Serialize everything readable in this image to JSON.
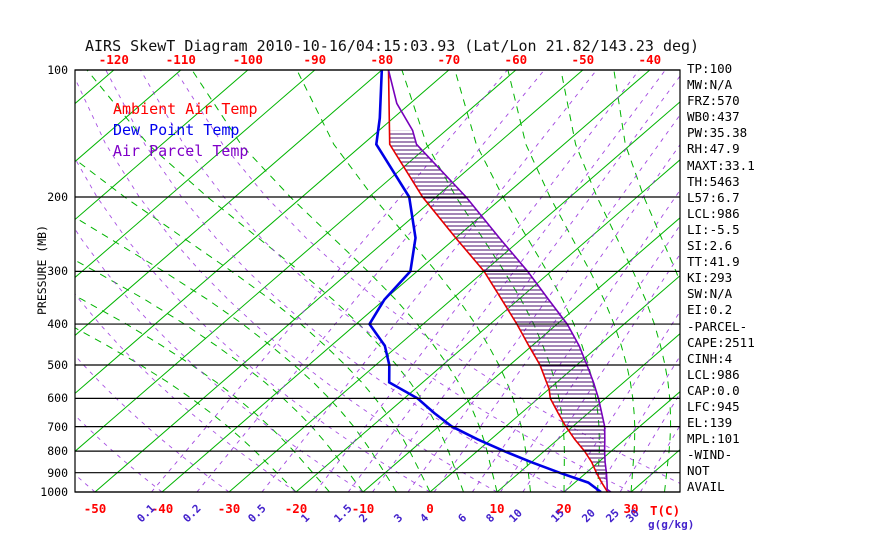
{
  "title": "AIRS SkewT Diagram 2010-10-16/04:15:03.93 (Lat/Lon 21.82/143.23 deg)",
  "legend": [
    {
      "label": "Ambient Air Temp",
      "color": "#ff0000"
    },
    {
      "label": "Dew Point Temp",
      "color": "#0000ee"
    },
    {
      "label": "Air Parcel Temp",
      "color": "#8000c8"
    }
  ],
  "y_axis": {
    "label": "PRESSURE (MB)",
    "ticks": [
      100,
      200,
      300,
      400,
      500,
      600,
      700,
      800,
      900,
      1000
    ]
  },
  "x_axis_top": {
    "ticks": [
      -120,
      -110,
      -100,
      -90,
      -80,
      -70,
      -60,
      -50,
      -40
    ],
    "color": "#ff0000"
  },
  "x_axis_bottom": {
    "ticks": [
      -50,
      -40,
      -30,
      -20,
      -10,
      0,
      10,
      20,
      30
    ],
    "unit": "T(C)",
    "color": "#ff0000"
  },
  "mixing_axis": {
    "ticks": [
      0.1,
      0.2,
      0.5,
      1,
      1.5,
      2,
      3,
      4,
      6,
      8,
      10,
      15,
      20,
      25,
      30
    ],
    "unit": "g(g/kg)",
    "color": "#4422cc"
  },
  "stats": [
    "TP:100",
    "MW:N/A",
    "FRZ:570",
    "WB0:437",
    "PW:35.38",
    "RH:47.9",
    "MAXT:33.1",
    "TH:5463",
    "L57:6.7",
    "LCL:986",
    "LI:-5.5",
    "SI:2.6",
    "TT:41.9",
    "KI:293",
    "SW:N/A",
    "EI:0.2",
    "-PARCEL-",
    "CAPE:2511",
    "CINH:4",
    "LCL:986",
    "CAP:0.0",
    "LFC:945",
    "EL:139",
    "MPL:101",
    "-WIND-",
    "NOT",
    "AVAIL"
  ],
  "chart_data": {
    "type": "line",
    "title": "AIRS SkewT Diagram 2010-10-16/04:15:03.93 (Lat/Lon 21.82/143.23 deg)",
    "xlabel": "T(C)",
    "ylabel": "PRESSURE (MB)",
    "y_scale": "log",
    "ylim": [
      1000,
      100
    ],
    "xlim_bottom_c": [
      -50,
      40
    ],
    "isotherms_c": [
      -130,
      -120,
      -110,
      -100,
      -90,
      -80,
      -70,
      -60,
      -50,
      -40,
      -30,
      -20,
      -10,
      0,
      10,
      20,
      30,
      40
    ],
    "dry_adiabats_c": [
      -50,
      -40,
      -30,
      -20,
      -10,
      0,
      10,
      20,
      30,
      40
    ],
    "moist_adiabats_c": [
      -20,
      -15,
      -10,
      -5,
      0,
      5,
      10,
      15,
      20,
      25,
      30,
      35,
      40
    ],
    "mixing_ratio_g_kg": [
      0.1,
      0.2,
      0.5,
      1,
      1.5,
      2,
      3,
      4,
      6,
      8,
      10,
      15,
      20,
      25,
      30
    ],
    "colors": {
      "isotherm": "#00b400",
      "moist_adiabat": "#00b400",
      "dry_adiabat": "#9933dd",
      "mixing_ratio": "#9933dd",
      "frame": "#000000",
      "hatch": "#4a0d6e",
      "background": "#ffffff"
    },
    "series": [
      {
        "name": "Ambient Air Temp",
        "color": "#e60000",
        "points_p_t": [
          [
            100,
            -79
          ],
          [
            150,
            -66
          ],
          [
            200,
            -52
          ],
          [
            250,
            -40
          ],
          [
            300,
            -30
          ],
          [
            350,
            -22.5
          ],
          [
            400,
            -16
          ],
          [
            450,
            -10.5
          ],
          [
            500,
            -5.5
          ],
          [
            570,
            0
          ],
          [
            600,
            1.8
          ],
          [
            650,
            5.5
          ],
          [
            700,
            9
          ],
          [
            750,
            12.5
          ],
          [
            800,
            16
          ],
          [
            850,
            19
          ],
          [
            900,
            21.5
          ],
          [
            950,
            24
          ],
          [
            1000,
            26.5
          ]
        ]
      },
      {
        "name": "Dew Point Temp",
        "color": "#0000e6",
        "points_p_t": [
          [
            100,
            -80
          ],
          [
            130,
            -72
          ],
          [
            150,
            -68
          ],
          [
            200,
            -54
          ],
          [
            250,
            -46
          ],
          [
            300,
            -41
          ],
          [
            350,
            -40
          ],
          [
            400,
            -38
          ],
          [
            450,
            -32
          ],
          [
            500,
            -28
          ],
          [
            550,
            -25
          ],
          [
            600,
            -18
          ],
          [
            650,
            -13
          ],
          [
            700,
            -8
          ],
          [
            750,
            -2
          ],
          [
            800,
            4
          ],
          [
            850,
            10
          ],
          [
            900,
            16
          ],
          [
            950,
            22
          ],
          [
            1000,
            25.5
          ]
        ]
      },
      {
        "name": "Air Parcel Temp",
        "color": "#7700bb",
        "points_p_t": [
          [
            100,
            -79
          ],
          [
            120,
            -72
          ],
          [
            139,
            -65
          ],
          [
            150,
            -62
          ],
          [
            200,
            -45.5
          ],
          [
            250,
            -33.5
          ],
          [
            300,
            -23.5
          ],
          [
            350,
            -15.5
          ],
          [
            400,
            -8.5
          ],
          [
            450,
            -3
          ],
          [
            500,
            1.5
          ],
          [
            550,
            5.5
          ],
          [
            600,
            9
          ],
          [
            650,
            12
          ],
          [
            700,
            14.8
          ],
          [
            750,
            17
          ],
          [
            800,
            19
          ],
          [
            850,
            21
          ],
          [
            900,
            23
          ],
          [
            950,
            24.8
          ],
          [
            986,
            26
          ],
          [
            1000,
            27
          ]
        ]
      }
    ],
    "cape_hatch": {
      "between": [
        "Air Parcel Temp",
        "Ambient Air Temp"
      ],
      "pressure_range": [
        139,
        945
      ]
    }
  }
}
